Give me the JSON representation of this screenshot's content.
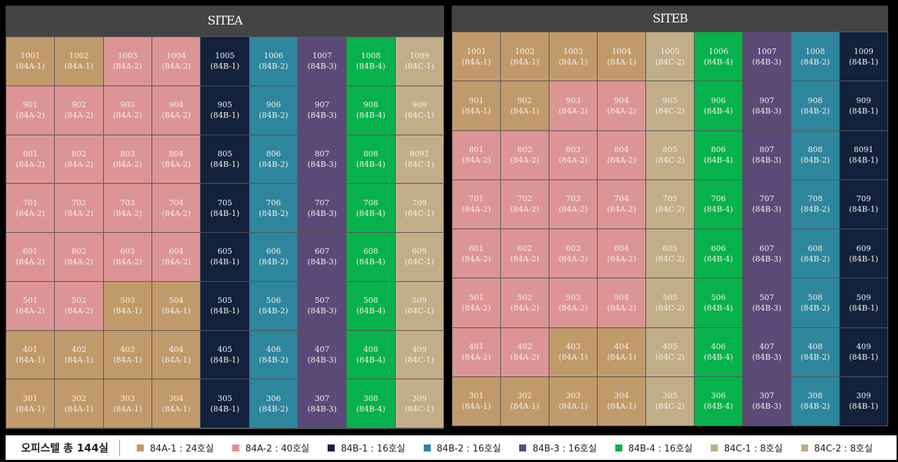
{
  "colors": {
    "84A-1": "#c19a6b",
    "84A-2": "#dd9495",
    "84B-1": "#12213c",
    "84B-2": "#2e869d",
    "84B-3": "#5b4978",
    "84B-4": "#07b14c",
    "84C-1": "#c1ad87",
    "84C-2": "#c1ad87"
  },
  "sites": [
    {
      "title": "SITEA",
      "floors": [
        {
          "units": [
            [
              "1001",
              "84A-1"
            ],
            [
              "1002",
              "84A-1"
            ],
            [
              "1003",
              "84A-2"
            ],
            [
              "1004",
              "84A-2"
            ],
            [
              "1005",
              "84B-1"
            ],
            [
              "1006",
              "84B-2"
            ],
            [
              "1007",
              "84B-3"
            ],
            [
              "1008",
              "84B-4"
            ],
            [
              "1009",
              "84C-1"
            ]
          ]
        },
        {
          "units": [
            [
              "901",
              "84A-2"
            ],
            [
              "902",
              "84A-2"
            ],
            [
              "903",
              "84A-2"
            ],
            [
              "904",
              "84A-2"
            ],
            [
              "905",
              "84B-1"
            ],
            [
              "906",
              "84B-2"
            ],
            [
              "907",
              "84B-3"
            ],
            [
              "908",
              "84B-4"
            ],
            [
              "909",
              "84C-1"
            ]
          ]
        },
        {
          "units": [
            [
              "801",
              "84A-2"
            ],
            [
              "802",
              "84A-2"
            ],
            [
              "803",
              "84A-2"
            ],
            [
              "804",
              "84A-2"
            ],
            [
              "805",
              "84B-1"
            ],
            [
              "806",
              "84B-2"
            ],
            [
              "807",
              "84B-3"
            ],
            [
              "808",
              "84B-4"
            ],
            [
              "8091",
              "84C-1"
            ]
          ]
        },
        {
          "units": [
            [
              "701",
              "84A-2"
            ],
            [
              "702",
              "84A-2"
            ],
            [
              "703",
              "84A-2"
            ],
            [
              "704",
              "84A-2"
            ],
            [
              "705",
              "84B-1"
            ],
            [
              "706",
              "84B-2"
            ],
            [
              "707",
              "84B-3"
            ],
            [
              "708",
              "84B-4"
            ],
            [
              "709",
              "84C-1"
            ]
          ]
        },
        {
          "units": [
            [
              "601",
              "84A-2"
            ],
            [
              "602",
              "84A-2"
            ],
            [
              "603",
              "84A-2"
            ],
            [
              "604",
              "84A-2"
            ],
            [
              "605",
              "84B-1"
            ],
            [
              "606",
              "84B-2"
            ],
            [
              "607",
              "84B-3"
            ],
            [
              "608",
              "84B-4"
            ],
            [
              "609",
              "84C-1"
            ]
          ]
        },
        {
          "units": [
            [
              "501",
              "84A-2"
            ],
            [
              "502",
              "84A-2"
            ],
            [
              "503",
              "84A-1"
            ],
            [
              "504",
              "84A-1"
            ],
            [
              "505",
              "84B-1"
            ],
            [
              "506",
              "84B-2"
            ],
            [
              "507",
              "84B-3"
            ],
            [
              "508",
              "84B-4"
            ],
            [
              "509",
              "84C-1"
            ]
          ]
        },
        {
          "units": [
            [
              "401",
              "84A-1"
            ],
            [
              "402",
              "84A-1"
            ],
            [
              "403",
              "84A-1"
            ],
            [
              "404",
              "84A-1"
            ],
            [
              "405",
              "84B-1"
            ],
            [
              "406",
              "84B-2"
            ],
            [
              "407",
              "84B-3"
            ],
            [
              "408",
              "84B-4"
            ],
            [
              "409",
              "84C-1"
            ]
          ]
        },
        {
          "units": [
            [
              "301",
              "84A-1"
            ],
            [
              "302",
              "84A-1"
            ],
            [
              "303",
              "84A-1"
            ],
            [
              "304",
              "84A-1"
            ],
            [
              "305",
              "84B-1"
            ],
            [
              "306",
              "84B-2"
            ],
            [
              "307",
              "84B-3"
            ],
            [
              "308",
              "84B-4"
            ],
            [
              "309",
              "84C-1"
            ]
          ]
        }
      ]
    },
    {
      "title": "SITEB",
      "floors": [
        {
          "units": [
            [
              "1001",
              "84A-1"
            ],
            [
              "1002",
              "84A-1"
            ],
            [
              "1003",
              "84A-1"
            ],
            [
              "1004",
              "84A-1"
            ],
            [
              "1005",
              "84C-2"
            ],
            [
              "1006",
              "84B-4"
            ],
            [
              "1007",
              "84B-3"
            ],
            [
              "1008",
              "84B-2"
            ],
            [
              "1009",
              "84B-1"
            ]
          ]
        },
        {
          "units": [
            [
              "901",
              "84A-1"
            ],
            [
              "902",
              "84A-1"
            ],
            [
              "903",
              "84A-2"
            ],
            [
              "904",
              "84A-2"
            ],
            [
              "905",
              "84C-2"
            ],
            [
              "906",
              "84B-4"
            ],
            [
              "907",
              "84B-3"
            ],
            [
              "908",
              "84B-2"
            ],
            [
              "909",
              "84B-1"
            ]
          ]
        },
        {
          "units": [
            [
              "801",
              "84A-2"
            ],
            [
              "802",
              "84A-2"
            ],
            [
              "803",
              "84A-2"
            ],
            [
              "804",
              "84A-2"
            ],
            [
              "805",
              "84C-2"
            ],
            [
              "806",
              "84B-4"
            ],
            [
              "807",
              "84B-3"
            ],
            [
              "808",
              "84B-2"
            ],
            [
              "8091",
              "84B-1"
            ]
          ]
        },
        {
          "units": [
            [
              "701",
              "84A-2"
            ],
            [
              "702",
              "84A-2"
            ],
            [
              "703",
              "84A-2"
            ],
            [
              "704",
              "84A-2"
            ],
            [
              "705",
              "84C-2"
            ],
            [
              "706",
              "84B-4"
            ],
            [
              "707",
              "84B-3"
            ],
            [
              "708",
              "84B-2"
            ],
            [
              "709",
              "84B-1"
            ]
          ]
        },
        {
          "units": [
            [
              "601",
              "84A-2"
            ],
            [
              "602",
              "84A-2"
            ],
            [
              "603",
              "84A-2"
            ],
            [
              "604",
              "84A-2"
            ],
            [
              "605",
              "84C-2"
            ],
            [
              "606",
              "84B-4"
            ],
            [
              "607",
              "84B-3"
            ],
            [
              "608",
              "84B-2"
            ],
            [
              "609",
              "84B-1"
            ]
          ]
        },
        {
          "units": [
            [
              "501",
              "84A-2"
            ],
            [
              "502",
              "84A-2"
            ],
            [
              "503",
              "84A-2"
            ],
            [
              "504",
              "84A-2"
            ],
            [
              "505",
              "84C-2"
            ],
            [
              "506",
              "84B-4"
            ],
            [
              "507",
              "84B-3"
            ],
            [
              "508",
              "84B-2"
            ],
            [
              "509",
              "84B-1"
            ]
          ]
        },
        {
          "units": [
            [
              "401",
              "84A-2"
            ],
            [
              "402",
              "84A-2"
            ],
            [
              "403",
              "84A-1"
            ],
            [
              "404",
              "84A-1"
            ],
            [
              "405",
              "84C-2"
            ],
            [
              "406",
              "84B-4"
            ],
            [
              "407",
              "84B-3"
            ],
            [
              "408",
              "84B-2"
            ],
            [
              "409",
              "84B-1"
            ]
          ]
        },
        {
          "units": [
            [
              "301",
              "84A-1"
            ],
            [
              "302",
              "84A-1"
            ],
            [
              "303",
              "84A-1"
            ],
            [
              "304",
              "84A-1"
            ],
            [
              "305",
              "84C-2"
            ],
            [
              "306",
              "84B-4"
            ],
            [
              "307",
              "84B-3"
            ],
            [
              "308",
              "84B-2"
            ],
            [
              "309",
              "84B-1"
            ]
          ]
        }
      ]
    }
  ],
  "legend": {
    "total": "오피스텔 총 144실",
    "items": [
      {
        "type": "84A-1",
        "label": "84A-1 : 24호실"
      },
      {
        "type": "84A-2",
        "label": "84A-2 : 40호실"
      },
      {
        "type": "84B-1",
        "label": "84B-1 : 16호실"
      },
      {
        "type": "84B-2",
        "label": "84B-2 : 16호실"
      },
      {
        "type": "84B-3",
        "label": "84B-3 : 16호실"
      },
      {
        "type": "84B-4",
        "label": "84B-4 : 16호실"
      },
      {
        "type": "84C-1",
        "label": "84C-1 : 8호실"
      },
      {
        "type": "84C-2",
        "label": "84C-2 : 8호실"
      }
    ]
  }
}
